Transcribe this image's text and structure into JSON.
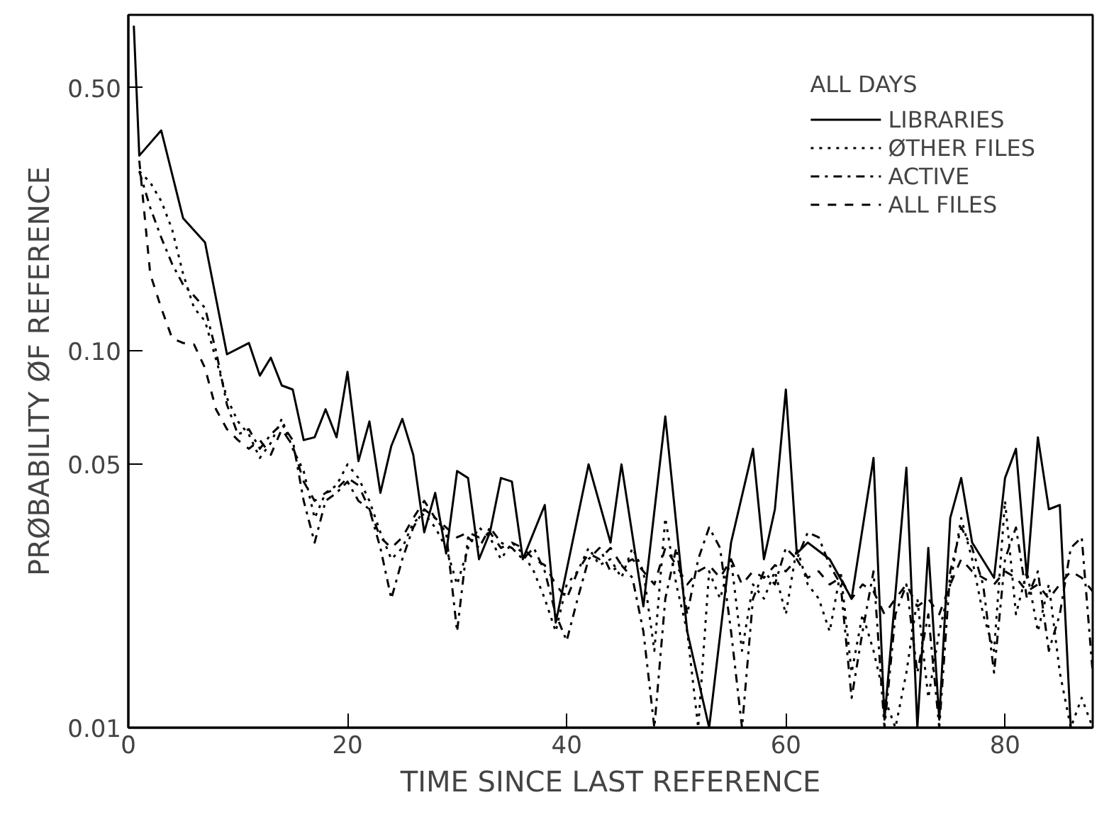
{
  "chart_data": {
    "type": "line",
    "xlabel": "TIME SINCE LAST REFERENCE",
    "ylabel": "PRØBABILITY ØF REFERENCE",
    "legend_title": "ALL DAYS",
    "log": "y",
    "xlim": [
      0,
      88
    ],
    "ylim": [
      0.01,
      0.78
    ],
    "xticks": [
      0,
      20,
      40,
      60,
      80
    ],
    "yticks": [
      {
        "value": 0.01,
        "label": "0.01"
      },
      {
        "value": 0.05,
        "label": "0.05"
      },
      {
        "value": 0.1,
        "label": "0.10"
      },
      {
        "value": 0.5,
        "label": "0.50"
      }
    ],
    "grid": false,
    "legend": "top right",
    "x": [
      1,
      2,
      3,
      4,
      5,
      6,
      7,
      8,
      9,
      10,
      11,
      12,
      13,
      14,
      15,
      16,
      17,
      18,
      19,
      20,
      21,
      22,
      23,
      24,
      25,
      26,
      27,
      28,
      29,
      30,
      31,
      32,
      33,
      34,
      35,
      36,
      37,
      38,
      39,
      40,
      41,
      42,
      43,
      44,
      45,
      46,
      47,
      48,
      49,
      50,
      51,
      52,
      53,
      54,
      55,
      56,
      57,
      58,
      59,
      60,
      61,
      62,
      63,
      64,
      65,
      66,
      67,
      68,
      69,
      70,
      71,
      72,
      73,
      74,
      75,
      76,
      77,
      78,
      79,
      80,
      81,
      82,
      83,
      84,
      85,
      86,
      87,
      88
    ],
    "series": [
      {
        "name": "LIBRARIES",
        "color": "#000000",
        "line_style": "solid",
        "x": [
          0.5,
          1,
          3,
          5,
          7,
          9,
          11,
          12,
          13,
          14,
          15,
          16,
          17,
          18,
          19,
          20,
          21,
          22,
          23,
          24,
          25,
          26,
          27,
          28,
          29,
          30,
          31,
          32,
          33,
          34,
          35,
          36,
          38,
          39,
          42,
          44,
          45,
          47,
          49,
          51,
          53,
          55,
          57,
          58,
          59,
          60,
          61,
          62,
          64,
          66,
          68,
          69,
          71,
          72,
          73,
          74,
          75,
          76,
          77,
          79,
          80,
          81,
          82,
          83,
          84,
          85,
          86
        ],
        "values": [
          0.73,
          0.33,
          0.385,
          0.225,
          0.194,
          0.098,
          0.105,
          0.086,
          0.096,
          0.081,
          0.079,
          0.058,
          0.059,
          0.07,
          0.059,
          0.088,
          0.051,
          0.065,
          0.042,
          0.056,
          0.066,
          0.053,
          0.033,
          0.042,
          0.029,
          0.048,
          0.046,
          0.028,
          0.033,
          0.046,
          0.045,
          0.028,
          0.039,
          0.019,
          0.05,
          0.031,
          0.05,
          0.021,
          0.067,
          0.018,
          0.01,
          0.031,
          0.055,
          0.028,
          0.038,
          0.079,
          0.029,
          0.031,
          0.028,
          0.022,
          0.052,
          0.0105,
          0.049,
          0.01,
          0.03,
          0.0105,
          0.036,
          0.046,
          0.031,
          0.025,
          0.046,
          0.055,
          0.025,
          0.059,
          0.038,
          0.039,
          0.01
        ]
      },
      {
        "name": "ØTHER FILES",
        "color": "#000000",
        "line_style": "dotted",
        "values": [
          0.3,
          0.28,
          0.25,
          0.21,
          0.16,
          0.13,
          0.12,
          0.095,
          0.075,
          0.065,
          0.06,
          0.052,
          0.057,
          0.066,
          0.055,
          0.048,
          0.036,
          0.042,
          0.044,
          0.05,
          0.046,
          0.04,
          0.033,
          0.028,
          0.03,
          0.035,
          0.037,
          0.034,
          0.03,
          0.024,
          0.03,
          0.034,
          0.032,
          0.028,
          0.031,
          0.029,
          0.026,
          0.022,
          0.018,
          0.024,
          0.026,
          0.03,
          0.027,
          0.028,
          0.025,
          0.03,
          0.026,
          0.016,
          0.036,
          0.024,
          0.018,
          0.01,
          0.026,
          0.022,
          0.028,
          0.016,
          0.024,
          0.022,
          0.026,
          0.02,
          0.03,
          0.024,
          0.022,
          0.018,
          0.026,
          0.014,
          0.02,
          0.016,
          0.012,
          0.01,
          0.014,
          0.022,
          0.012,
          0.018,
          0.024,
          0.036,
          0.028,
          0.02,
          0.016,
          0.04,
          0.02,
          0.026,
          0.018,
          0.024,
          0.014,
          0.01,
          0.012,
          0.01
        ]
      },
      {
        "name": "ACTIVE",
        "color": "#000000",
        "line_style": "dashdot",
        "values": [
          0.3,
          0.24,
          0.2,
          0.17,
          0.15,
          0.14,
          0.13,
          0.1,
          0.072,
          0.06,
          0.062,
          0.055,
          0.06,
          0.064,
          0.058,
          0.04,
          0.031,
          0.04,
          0.042,
          0.045,
          0.04,
          0.038,
          0.03,
          0.022,
          0.028,
          0.034,
          0.038,
          0.036,
          0.033,
          0.018,
          0.032,
          0.03,
          0.034,
          0.031,
          0.03,
          0.028,
          0.03,
          0.026,
          0.02,
          0.017,
          0.022,
          0.028,
          0.03,
          0.026,
          0.027,
          0.025,
          0.018,
          0.01,
          0.022,
          0.03,
          0.02,
          0.028,
          0.034,
          0.03,
          0.018,
          0.01,
          0.022,
          0.026,
          0.024,
          0.03,
          0.028,
          0.033,
          0.032,
          0.027,
          0.024,
          0.012,
          0.018,
          0.026,
          0.01,
          0.02,
          0.024,
          0.014,
          0.02,
          0.01,
          0.026,
          0.034,
          0.03,
          0.024,
          0.014,
          0.028,
          0.034,
          0.022,
          0.026,
          0.016,
          0.02,
          0.03,
          0.032,
          0.014
        ]
      },
      {
        "name": "ALL FILES",
        "color": "#000000",
        "line_style": "dashed",
        "values": [
          0.32,
          0.16,
          0.13,
          0.108,
          0.105,
          0.104,
          0.09,
          0.07,
          0.062,
          0.058,
          0.055,
          0.058,
          0.053,
          0.062,
          0.056,
          0.045,
          0.04,
          0.042,
          0.043,
          0.046,
          0.044,
          0.038,
          0.032,
          0.03,
          0.032,
          0.036,
          0.04,
          0.036,
          0.034,
          0.032,
          0.033,
          0.032,
          0.033,
          0.03,
          0.031,
          0.03,
          0.028,
          0.027,
          0.024,
          0.022,
          0.026,
          0.029,
          0.028,
          0.03,
          0.027,
          0.028,
          0.026,
          0.024,
          0.03,
          0.027,
          0.024,
          0.026,
          0.027,
          0.025,
          0.028,
          0.024,
          0.026,
          0.025,
          0.027,
          0.026,
          0.028,
          0.025,
          0.026,
          0.024,
          0.025,
          0.022,
          0.024,
          0.023,
          0.02,
          0.022,
          0.024,
          0.021,
          0.022,
          0.02,
          0.024,
          0.028,
          0.026,
          0.025,
          0.024,
          0.026,
          0.025,
          0.023,
          0.024,
          0.022,
          0.024,
          0.026,
          0.025,
          0.023
        ]
      }
    ]
  }
}
